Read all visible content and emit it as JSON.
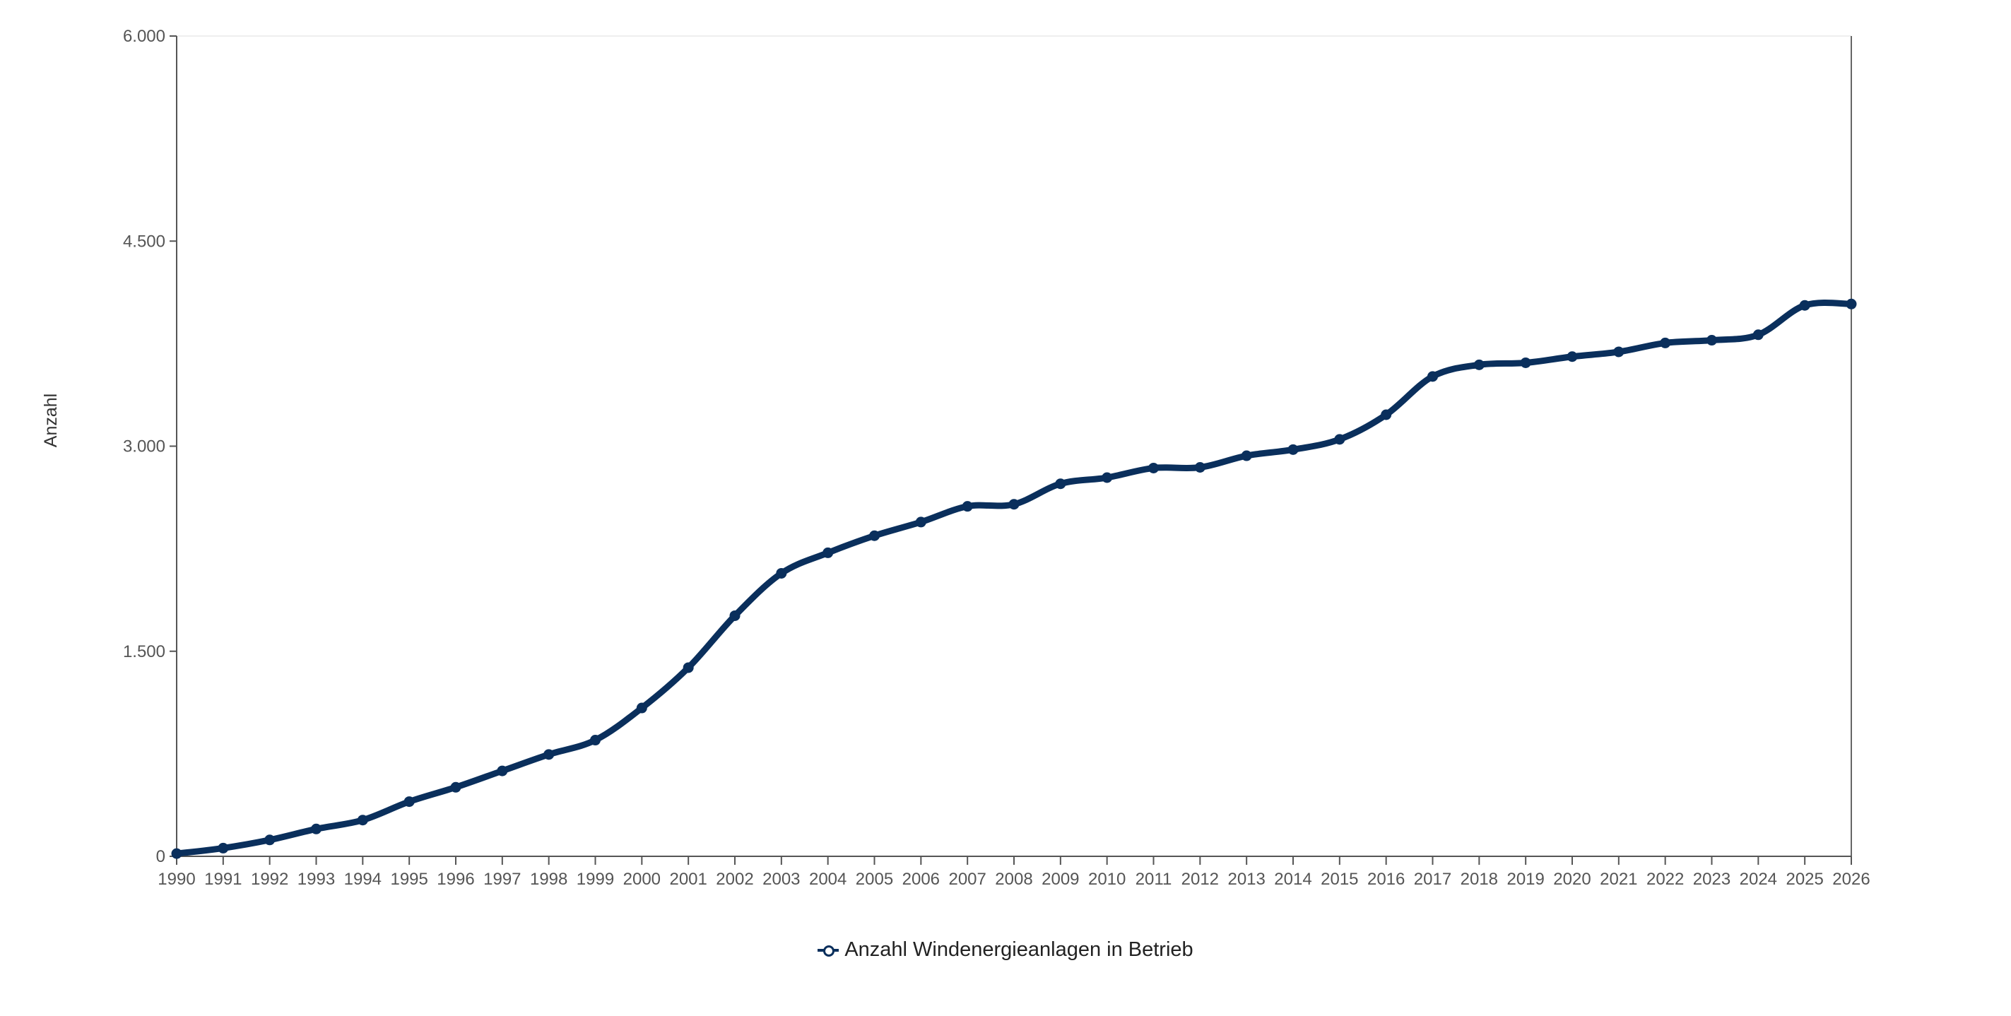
{
  "chart_data": {
    "type": "line",
    "title": "",
    "xlabel": "",
    "ylabel": "Anzahl",
    "x": [
      "1990",
      "1991",
      "1992",
      "1993",
      "1994",
      "1995",
      "1996",
      "1997",
      "1998",
      "1999",
      "2000",
      "2001",
      "2002",
      "2003",
      "2004",
      "2005",
      "2006",
      "2007",
      "2008",
      "2009",
      "2010",
      "2011",
      "2012",
      "2013",
      "2014",
      "2015",
      "2016",
      "2017",
      "2018",
      "2019",
      "2020",
      "2021",
      "2022",
      "2023",
      "2024",
      "2025",
      "2026"
    ],
    "ylim": [
      0,
      6000
    ],
    "yticks": [
      0,
      1500,
      3000,
      4500,
      6000
    ],
    "ytick_labels": [
      "0",
      "1.500",
      "3.000",
      "4.500",
      "6.000"
    ],
    "grid": false,
    "legend_position": "bottom-center",
    "series": [
      {
        "name": "Anzahl Windenergieanlagen in Betrieb",
        "color": "#0a2f5c",
        "values": [
          20,
          60,
          120,
          200,
          265,
          400,
          505,
          625,
          745,
          850,
          1085,
          1380,
          1760,
          2070,
          2220,
          2345,
          2445,
          2560,
          2575,
          2725,
          2770,
          2840,
          2845,
          2930,
          2975,
          3050,
          3230,
          3510,
          3595,
          3610,
          3655,
          3690,
          3755,
          3775,
          3815,
          4030,
          4040
        ]
      }
    ]
  }
}
